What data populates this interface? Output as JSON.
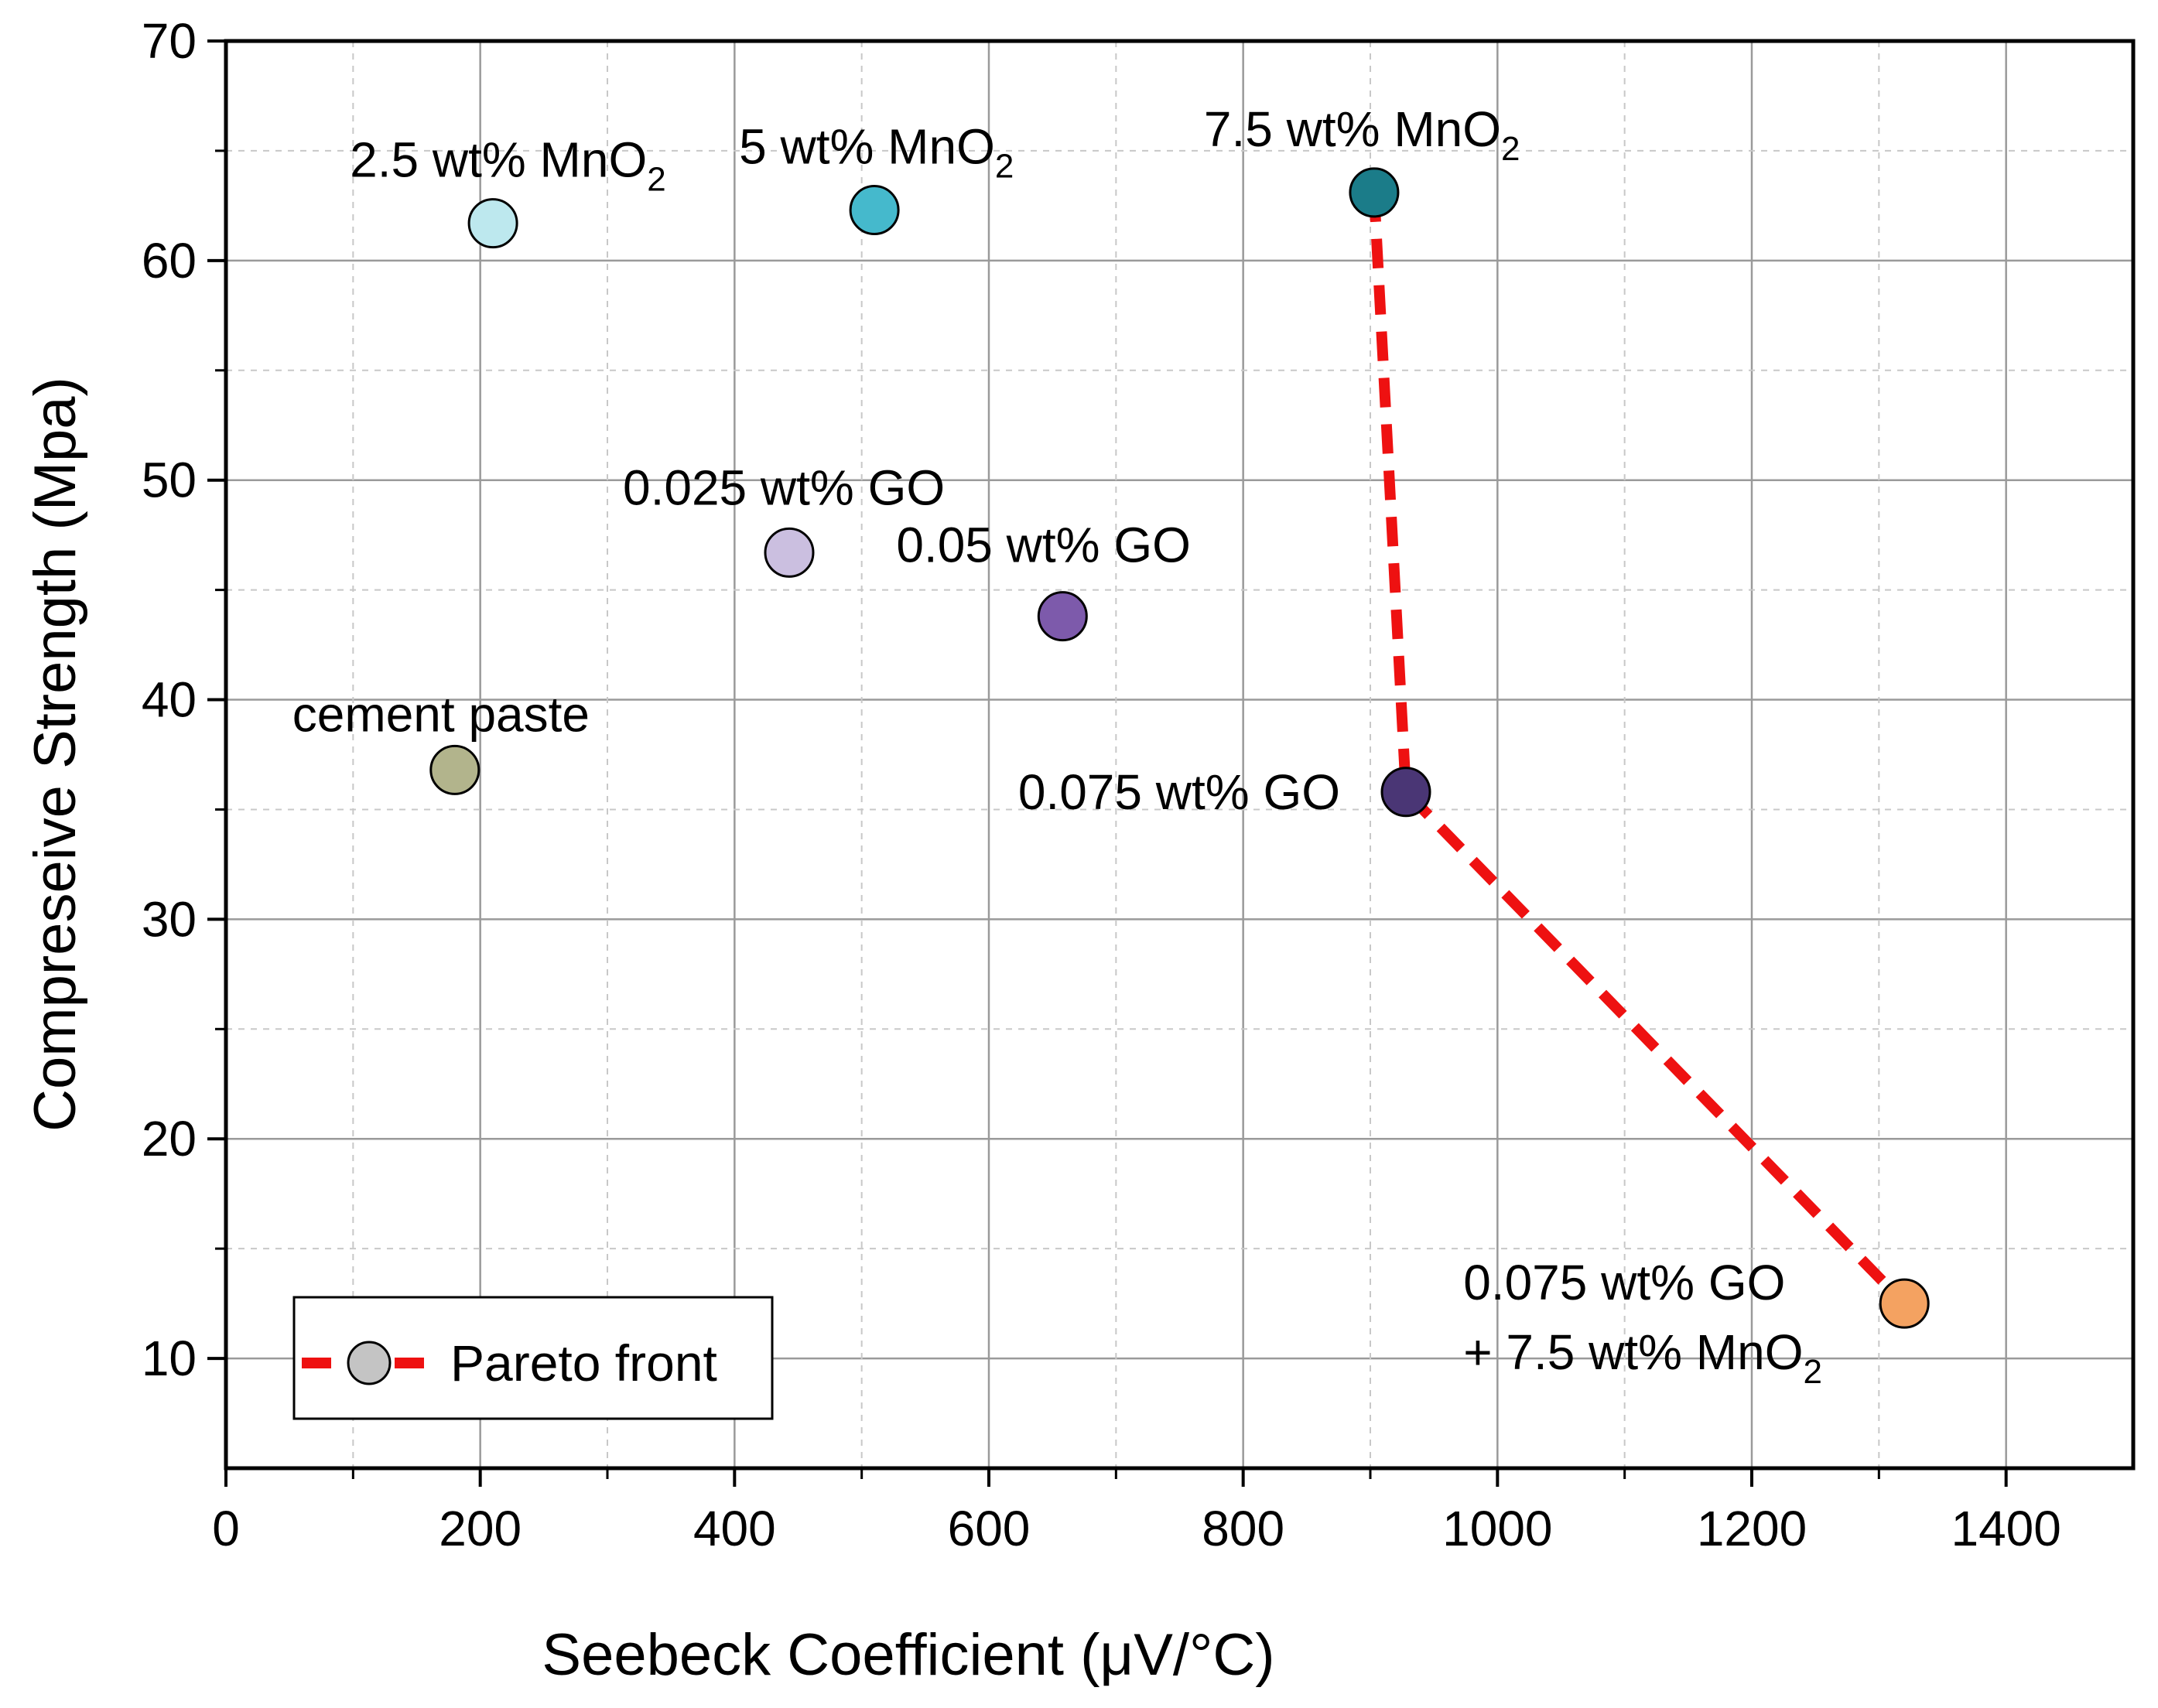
{
  "chart_data": {
    "type": "scatter",
    "title": "",
    "xlabel": "Seebeck Coefficient (μV/°C)",
    "ylabel": "Compreseive Strength (Mpa)",
    "xlim": [
      0,
      1500
    ],
    "ylim": [
      5,
      70
    ],
    "x_ticks": [
      0,
      200,
      400,
      600,
      800,
      1000,
      1200,
      1400
    ],
    "y_ticks": [
      10,
      20,
      30,
      40,
      50,
      60,
      70
    ],
    "grid": true,
    "points": [
      {
        "x": 180,
        "y": 36.8,
        "label": "cement paste",
        "sub": "",
        "color": "#b2b48c"
      },
      {
        "x": 210,
        "y": 61.7,
        "label": "2.5 wt% MnO",
        "sub": "2",
        "color": "#bde8ee"
      },
      {
        "x": 510,
        "y": 62.3,
        "label": "5 wt% MnO",
        "sub": "2",
        "color": "#45b9cc"
      },
      {
        "x": 903,
        "y": 63.1,
        "label": "7.5 wt% MnO",
        "sub": "2",
        "color": "#1b7c89"
      },
      {
        "x": 443,
        "y": 46.7,
        "label": "0.025 wt% GO",
        "sub": "",
        "color": "#cbbfe0"
      },
      {
        "x": 658,
        "y": 43.8,
        "label": "0.05 wt% GO",
        "sub": "",
        "color": "#7d5aab"
      },
      {
        "x": 928,
        "y": 35.8,
        "label": "0.075 wt% GO",
        "sub": "",
        "color": "#4a3675"
      },
      {
        "x": 1320,
        "y": 12.5,
        "label": "0.075 wt% GO",
        "label2": "+ 7.5 wt% MnO",
        "sub": "2",
        "color": "#f4a261"
      }
    ],
    "pareto_front": {
      "name": "Pareto front",
      "x": [
        903,
        928,
        1320
      ],
      "y": [
        63.1,
        35.8,
        12.5
      ],
      "color": "#ee1111"
    },
    "legend": {
      "position": "bottom-left",
      "entries": [
        "Pareto front"
      ]
    }
  }
}
